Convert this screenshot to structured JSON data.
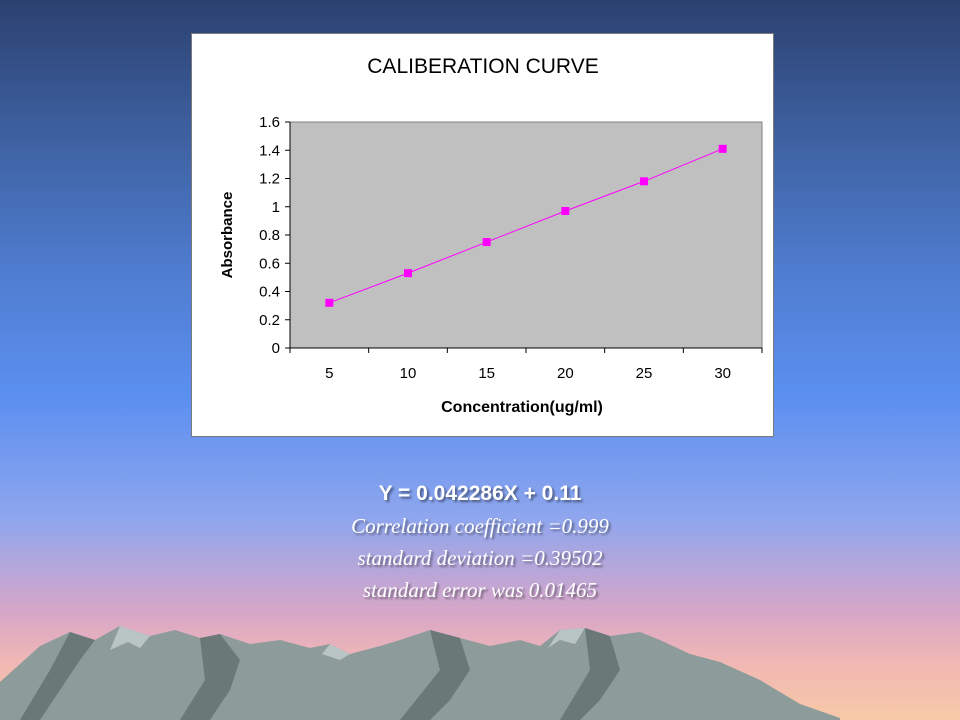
{
  "chart_data": {
    "type": "line",
    "title": "CALIBERATION CURVE",
    "xlabel": "Concentration(ug/ml)",
    "ylabel": "Absorbance",
    "categories": [
      "5",
      "10",
      "15",
      "20",
      "25",
      "30"
    ],
    "x": [
      5,
      10,
      15,
      20,
      25,
      30
    ],
    "series": [
      {
        "values": [
          0.32,
          0.53,
          0.75,
          0.97,
          1.18,
          1.41
        ],
        "color": "#ff00ff"
      }
    ],
    "ylim": [
      0,
      1.6
    ],
    "yticks": [
      "0",
      "0.2",
      "0.4",
      "0.6",
      "0.8",
      "1",
      "1.2",
      "1.4",
      "1.6"
    ],
    "plot_background": "#c0c0c0",
    "grid": false,
    "legend": "none"
  },
  "caption": {
    "equation": "Y = 0.042286X + 0.11",
    "correlation": "Correlation coefficient =0.999",
    "std_deviation": "standard deviation =0.39502",
    "std_error": "standard error was 0.01465"
  },
  "colors": {
    "mountain_front": "#8e9b9b",
    "mountain_shadow": "#6b7878",
    "mountain_highlight": "#b9c4c4"
  }
}
